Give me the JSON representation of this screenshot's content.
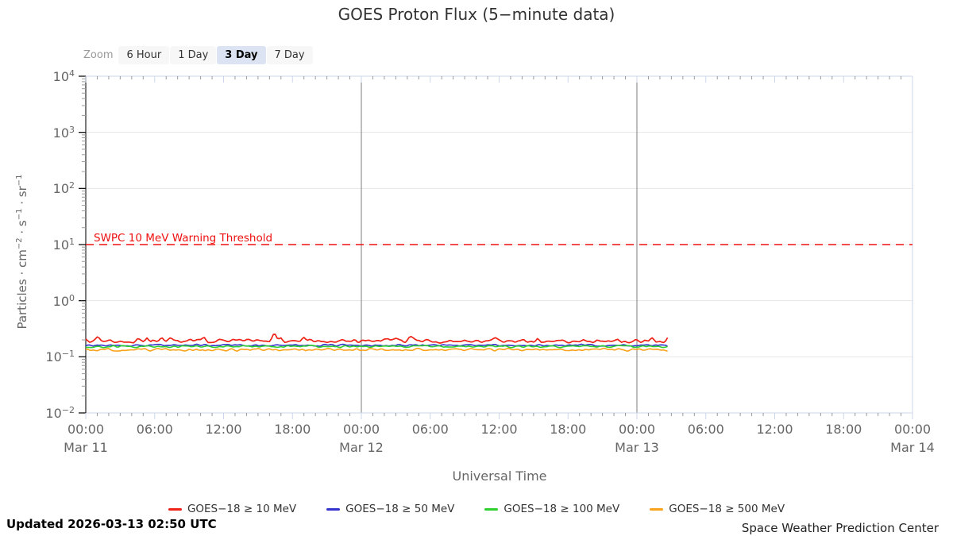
{
  "header": {
    "title": "GOES Proton Flux (5−minute data)"
  },
  "range_selector": {
    "label": "Zoom",
    "buttons": [
      {
        "label": "6 Hour",
        "selected": false
      },
      {
        "label": "1 Day",
        "selected": false
      },
      {
        "label": "3 Day",
        "selected": true
      },
      {
        "label": "7 Day",
        "selected": false
      }
    ]
  },
  "chart_data": {
    "type": "line",
    "title": "GOES Proton Flux (5-minute data)",
    "xlabel": "Universal Time",
    "ylabel_segments": [
      {
        "t": "Particles · cm"
      },
      {
        "sup": "−2"
      },
      {
        "t": " · s"
      },
      {
        "sup": "−1"
      },
      {
        "t": " · sr"
      },
      {
        "sup": "−1"
      }
    ],
    "y_scale": "log",
    "y_range_log10": [
      -2,
      4
    ],
    "y_ticks": [
      {
        "base": "10",
        "exp": "4",
        "log10": 4
      },
      {
        "base": "10",
        "exp": "3",
        "log10": 3
      },
      {
        "base": "10",
        "exp": "2",
        "log10": 2
      },
      {
        "base": "10",
        "exp": "1",
        "log10": 1
      },
      {
        "base": "10",
        "exp": "0",
        "log10": 0
      },
      {
        "base": "10",
        "exp": "−1",
        "log10": -1
      },
      {
        "base": "10",
        "exp": "−2",
        "log10": -2
      }
    ],
    "x_range_hours": [
      0,
      72
    ],
    "x_tick_step_hours": 6,
    "x_ticks": [
      {
        "hour": 0,
        "time": "00:00",
        "date": "Mar 11"
      },
      {
        "hour": 6,
        "time": "06:00"
      },
      {
        "hour": 12,
        "time": "12:00"
      },
      {
        "hour": 18,
        "time": "18:00"
      },
      {
        "hour": 24,
        "time": "00:00",
        "date": "Mar 12"
      },
      {
        "hour": 30,
        "time": "06:00"
      },
      {
        "hour": 36,
        "time": "12:00"
      },
      {
        "hour": 42,
        "time": "18:00"
      },
      {
        "hour": 48,
        "time": "00:00",
        "date": "Mar 13"
      },
      {
        "hour": 54,
        "time": "06:00"
      },
      {
        "hour": 60,
        "time": "12:00"
      },
      {
        "hour": 66,
        "time": "18:00"
      },
      {
        "hour": 72,
        "time": "00:00",
        "date": "Mar 14"
      }
    ],
    "day_lines_hours": [
      24,
      48
    ],
    "threshold": {
      "label": "SWPC 10 MeV Warning Threshold",
      "value_log10": 1,
      "value_pfu": 10,
      "color": "#ee1010"
    },
    "series": [
      {
        "name": "GOES−18 ≥ 10 MeV",
        "color": "#ef2318",
        "baseline_log10": -0.72,
        "noise_log10": 0.042,
        "spike_log10": 0.13,
        "spike_prob": 0.13,
        "width": 1.7
      },
      {
        "name": "GOES−18 ≥ 50 MeV",
        "color": "#3535cd",
        "baseline_log10": -0.795,
        "noise_log10": 0.024,
        "spike_log10": 0,
        "spike_prob": 0,
        "width": 1.6
      },
      {
        "name": "GOES−18 ≥ 100 MeV",
        "color": "#2fd02f",
        "baseline_log10": -0.815,
        "noise_log10": 0.024,
        "spike_log10": 0,
        "spike_prob": 0,
        "width": 1.6
      },
      {
        "name": "GOES−18 ≥ 500 MeV",
        "color": "#f9a21b",
        "baseline_log10": -0.872,
        "noise_log10": 0.033,
        "spike_log10": 0,
        "spike_prob": 0,
        "width": 1.6
      }
    ],
    "draw_order": [
      1,
      2,
      3,
      0
    ],
    "data_end_hour": 50.83,
    "sample_minutes": 10,
    "seed": 20260313,
    "grid": {
      "h_gridline_color": "#e6e6e6",
      "border_color": "#ccd6eb",
      "axis_color": "#333333",
      "minor_tick_color": "#999999",
      "major_tick_color": "#111111",
      "day_line_color": "#7d7d7d"
    },
    "legend_position": "bottom"
  },
  "footer": {
    "updated": "Updated 2026-03-13 02:50 UTC",
    "credit": "Space Weather Prediction Center"
  }
}
